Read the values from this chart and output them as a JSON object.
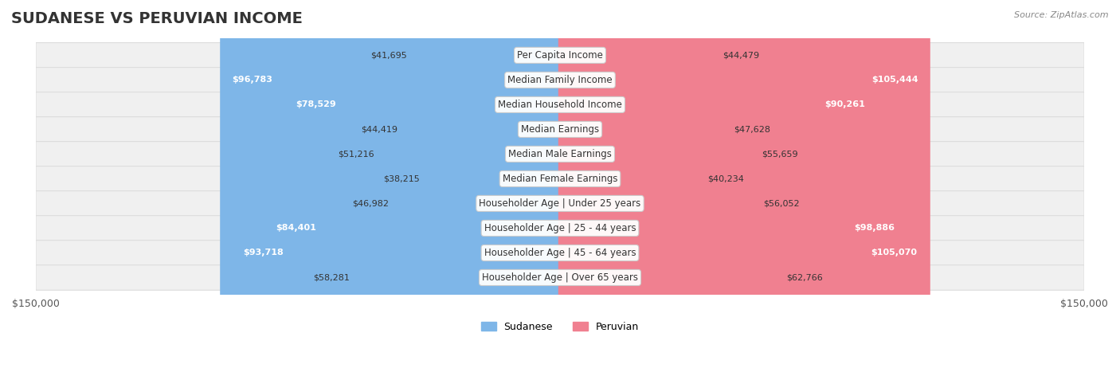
{
  "title": "SUDANESE VS PERUVIAN INCOME",
  "source": "Source: ZipAtlas.com",
  "categories": [
    "Per Capita Income",
    "Median Family Income",
    "Median Household Income",
    "Median Earnings",
    "Median Male Earnings",
    "Median Female Earnings",
    "Householder Age | Under 25 years",
    "Householder Age | 25 - 44 years",
    "Householder Age | 45 - 64 years",
    "Householder Age | Over 65 years"
  ],
  "sudanese": [
    41695,
    96783,
    78529,
    44419,
    51216,
    38215,
    46982,
    84401,
    93718,
    58281
  ],
  "peruvian": [
    44479,
    105444,
    90261,
    47628,
    55659,
    40234,
    56052,
    98886,
    105070,
    62766
  ],
  "max_val": 150000,
  "bar_height": 0.55,
  "sudanese_color": "#7EB6E8",
  "peruvian_color": "#F08090",
  "sudanese_color_dark": "#6AA8DC",
  "peruvian_color_dark": "#E87088",
  "row_bg_color": "#F0F0F0",
  "row_border_color": "#DDDDDD",
  "label_bg_color": "#FFFFFF",
  "title_fontsize": 14,
  "tick_fontsize": 9,
  "label_fontsize": 8.5,
  "value_fontsize": 8
}
